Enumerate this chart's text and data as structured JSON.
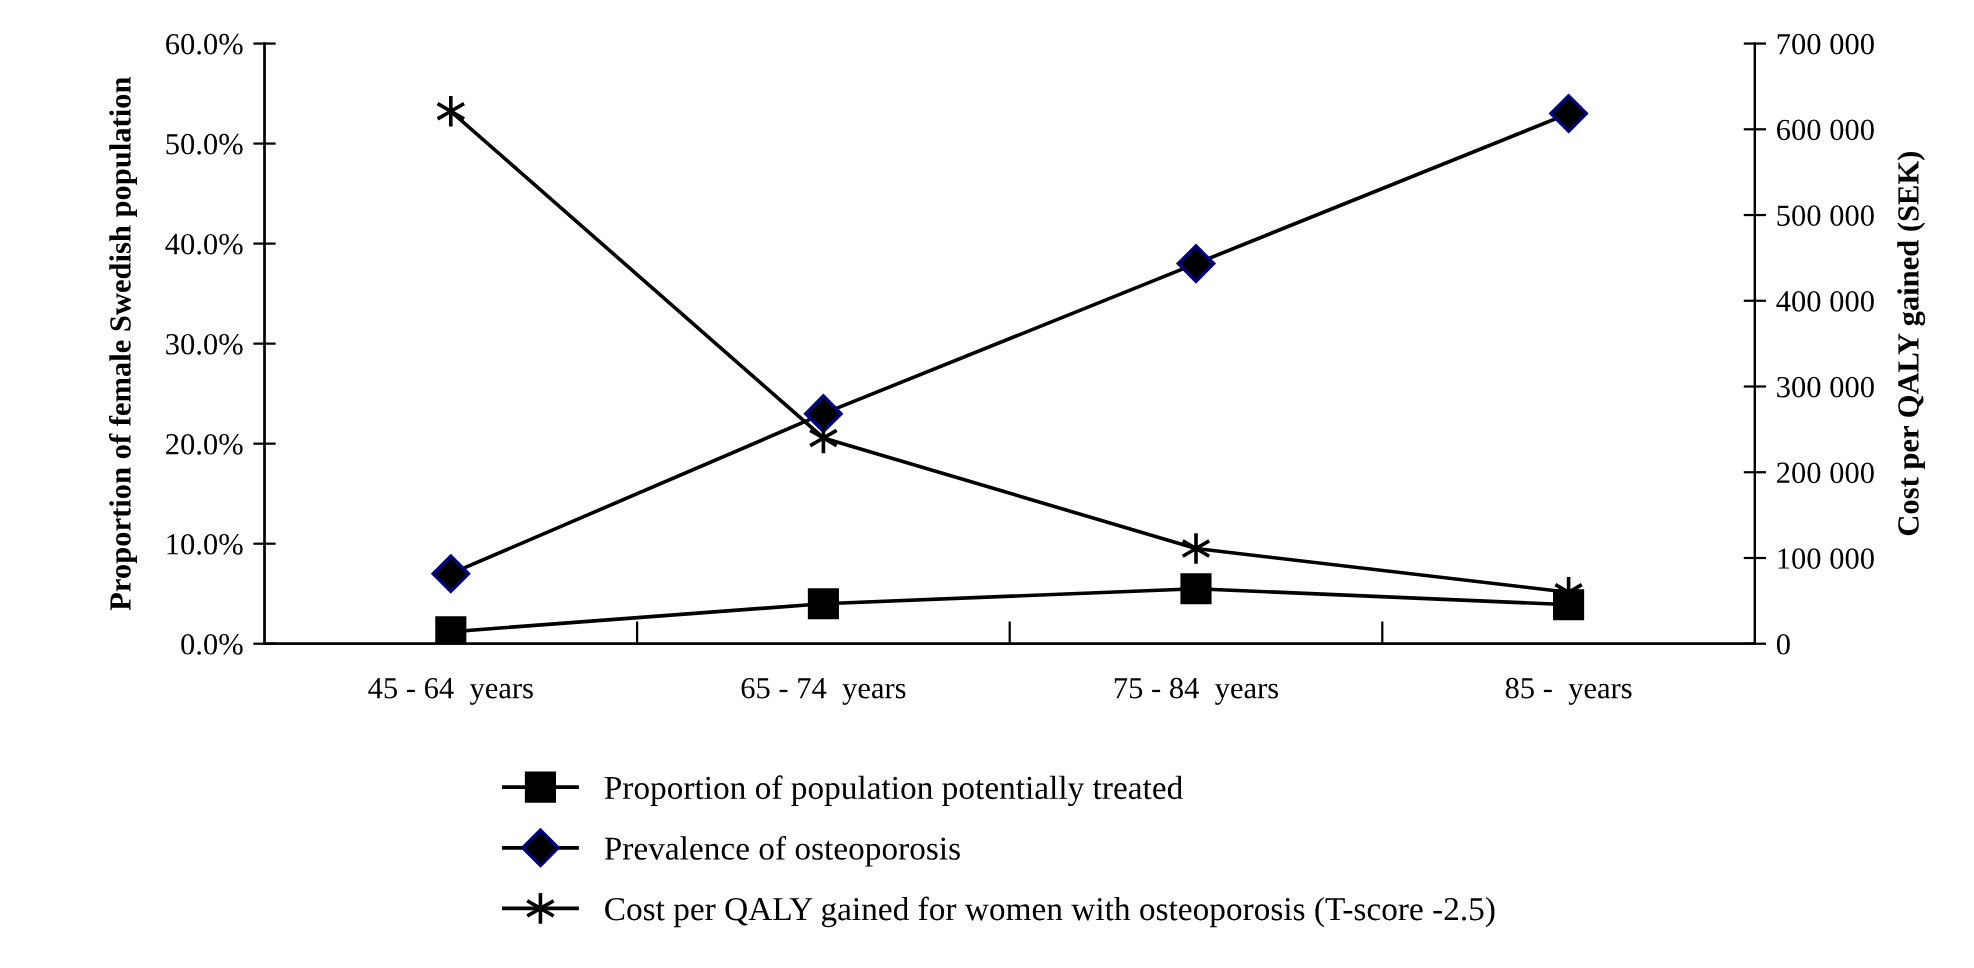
{
  "chart_data": {
    "type": "line",
    "categories": [
      "45 - 64  years",
      "65 - 74  years",
      "75 - 84  years",
      "85 -  years"
    ],
    "ylabel": "Proportion of female Swedish population",
    "y2label": "Cost per QALY gained (SEK)",
    "ylim": [
      0,
      60
    ],
    "yticks": [
      {
        "value": 0,
        "label": "0.0%"
      },
      {
        "value": 10,
        "label": "10.0%"
      },
      {
        "value": 20,
        "label": "20.0%"
      },
      {
        "value": 30,
        "label": "30.0%"
      },
      {
        "value": 40,
        "label": "40.0%"
      },
      {
        "value": 50,
        "label": "50.0%"
      },
      {
        "value": 60,
        "label": "60.0%"
      }
    ],
    "y2lim": [
      0,
      700000
    ],
    "y2ticks": [
      {
        "value": 0,
        "label": "0"
      },
      {
        "value": 100000,
        "label": "100 000"
      },
      {
        "value": 200000,
        "label": "200 000"
      },
      {
        "value": 300000,
        "label": "300 000"
      },
      {
        "value": 400000,
        "label": "400 000"
      },
      {
        "value": 500000,
        "label": "500 000"
      },
      {
        "value": 600000,
        "label": "600 000"
      },
      {
        "value": 700000,
        "label": "700 000"
      }
    ],
    "series": [
      {
        "name": "Proportion of population potentially treated",
        "color": "#000000",
        "marker": "square",
        "values": [
          1.2,
          4.0,
          5.5,
          3.9
        ]
      },
      {
        "name": "Prevalence of osteoporosis",
        "color": "#000080",
        "marker": "diamond",
        "values": [
          7.0,
          23.0,
          38.0,
          53.0
        ]
      },
      {
        "name": "Cost per QALY gained for women with osteoporosis (T-score -2.5)",
        "color": "#000000",
        "marker": "cross",
        "axis": "y2",
        "values": [
          621000,
          240000,
          111000,
          60000
        ]
      }
    ],
    "legend": "bottom",
    "grid": false
  }
}
